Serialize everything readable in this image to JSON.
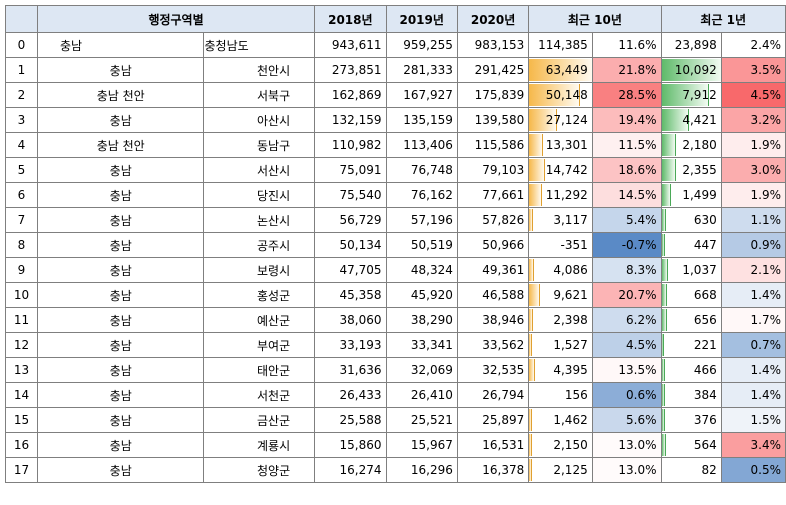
{
  "header": {
    "index": "",
    "region": "행정구역별",
    "y2018": "2018년",
    "y2019": "2019년",
    "y2020": "2020년",
    "recent10": "최근 10년",
    "recent1": "최근 1년"
  },
  "colors": {
    "header_bg": "#dde7f3",
    "orange_bar": "#f6b84a",
    "green_bar": "#5fba6a",
    "red_scale": "#f8696b",
    "blue_scale": "#5a8ac6",
    "border": "#7f7f7f"
  },
  "rows": [
    {
      "idx": "0",
      "prov": "충남",
      "city": "충청남도",
      "y2018": "943,611",
      "y2019": "959,255",
      "y2020": "983,153",
      "d10": "114,385",
      "p10": "11.6%",
      "d1": "23,898",
      "p1": "2.4%",
      "b10": 0,
      "b1": 0,
      "s10": 0,
      "s1": 0
    },
    {
      "idx": "1",
      "prov": "충남",
      "city": "천안시",
      "y2018": "273,851",
      "y2019": "281,333",
      "y2020": "291,425",
      "d10": "63,449",
      "p10": "21.8%",
      "d1": "10,092",
      "p1": "3.5%",
      "b10": 1.0,
      "b1": 1.0,
      "s10": 0.55,
      "s1": 0.7
    },
    {
      "idx": "2",
      "prov": "충남 천안",
      "city": "서북구",
      "y2018": "162,869",
      "y2019": "167,927",
      "y2020": "175,839",
      "d10": "50,148",
      "p10": "28.5%",
      "d1": "7,912",
      "p1": "4.5%",
      "b10": 0.79,
      "b1": 0.78,
      "s10": 0.85,
      "s1": 1.0
    },
    {
      "idx": "3",
      "prov": "충남",
      "city": "아산시",
      "y2018": "132,159",
      "y2019": "135,159",
      "y2020": "139,580",
      "d10": "27,124",
      "p10": "19.4%",
      "d1": "4,421",
      "p1": "3.2%",
      "b10": 0.43,
      "b1": 0.44,
      "s10": 0.45,
      "s1": 0.6
    },
    {
      "idx": "4",
      "prov": "충남 천안",
      "city": "동남구",
      "y2018": "110,982",
      "y2019": "113,406",
      "y2020": "115,586",
      "d10": "13,301",
      "p10": "11.5%",
      "d1": "2,180",
      "p1": "1.9%",
      "b10": 0.21,
      "b1": 0.22,
      "s10": 0.1,
      "s1": 0.12
    },
    {
      "idx": "5",
      "prov": "충남",
      "city": "서산시",
      "y2018": "75,091",
      "y2019": "76,748",
      "y2020": "79,103",
      "d10": "14,742",
      "p10": "18.6%",
      "d1": "2,355",
      "p1": "3.0%",
      "b10": 0.23,
      "b1": 0.23,
      "s10": 0.4,
      "s1": 0.55
    },
    {
      "idx": "6",
      "prov": "충남",
      "city": "당진시",
      "y2018": "75,540",
      "y2019": "76,162",
      "y2020": "77,661",
      "d10": "11,292",
      "p10": "14.5%",
      "d1": "1,499",
      "p1": "1.9%",
      "b10": 0.18,
      "b1": 0.15,
      "s10": 0.22,
      "s1": 0.12
    },
    {
      "idx": "7",
      "prov": "충남",
      "city": "논산시",
      "y2018": "56,729",
      "y2019": "57,196",
      "y2020": "57,826",
      "d10": "3,117",
      "p10": "5.4%",
      "d1": "630",
      "p1": "1.1%",
      "b10": 0.05,
      "b1": 0.06,
      "s10": -0.35,
      "s1": -0.3
    },
    {
      "idx": "8",
      "prov": "충남",
      "city": "공주시",
      "y2018": "50,134",
      "y2019": "50,519",
      "y2020": "50,966",
      "d10": "-351",
      "p10": "-0.7%",
      "d1": "447",
      "p1": "0.9%",
      "b10": 0,
      "b1": 0.04,
      "s10": -1.0,
      "s1": -0.45
    },
    {
      "idx": "9",
      "prov": "충남",
      "city": "보령시",
      "y2018": "47,705",
      "y2019": "48,324",
      "y2020": "49,361",
      "d10": "4,086",
      "p10": "8.3%",
      "d1": "1,037",
      "p1": "2.1%",
      "b10": 0.06,
      "b1": 0.1,
      "s10": -0.25,
      "s1": 0.2
    },
    {
      "idx": "10",
      "prov": "충남",
      "city": "홍성군",
      "y2018": "45,358",
      "y2019": "45,920",
      "y2020": "46,588",
      "d10": "9,621",
      "p10": "20.7%",
      "d1": "668",
      "p1": "1.4%",
      "b10": 0.15,
      "b1": 0.07,
      "s10": 0.5,
      "s1": -0.15
    },
    {
      "idx": "11",
      "prov": "충남",
      "city": "예산군",
      "y2018": "38,060",
      "y2019": "38,290",
      "y2020": "38,946",
      "d10": "2,398",
      "p10": "6.2%",
      "d1": "656",
      "p1": "1.7%",
      "b10": 0.04,
      "b1": 0.07,
      "s10": -0.3,
      "s1": 0.05
    },
    {
      "idx": "12",
      "prov": "충남",
      "city": "부여군",
      "y2018": "33,193",
      "y2019": "33,341",
      "y2020": "33,562",
      "d10": "1,527",
      "p10": "4.5%",
      "d1": "221",
      "p1": "0.7%",
      "b10": 0.02,
      "b1": 0.02,
      "s10": -0.4,
      "s1": -0.55
    },
    {
      "idx": "13",
      "prov": "충남",
      "city": "태안군",
      "y2018": "31,636",
      "y2019": "32,069",
      "y2020": "32,535",
      "d10": "4,395",
      "p10": "13.5%",
      "d1": "466",
      "p1": "1.4%",
      "b10": 0.07,
      "b1": 0.05,
      "s10": 0.05,
      "s1": -0.15
    },
    {
      "idx": "14",
      "prov": "충남",
      "city": "서천군",
      "y2018": "26,433",
      "y2019": "26,410",
      "y2020": "26,794",
      "d10": "156",
      "p10": "0.6%",
      "d1": "384",
      "p1": "1.4%",
      "b10": 0.0,
      "b1": 0.04,
      "s10": -0.7,
      "s1": -0.15
    },
    {
      "idx": "15",
      "prov": "충남",
      "city": "금산군",
      "y2018": "25,588",
      "y2019": "25,521",
      "y2020": "25,897",
      "d10": "1,462",
      "p10": "5.6%",
      "d1": "376",
      "p1": "1.5%",
      "b10": 0.02,
      "b1": 0.04,
      "s10": -0.33,
      "s1": -0.1
    },
    {
      "idx": "16",
      "prov": "충남",
      "city": "계룡시",
      "y2018": "15,860",
      "y2019": "15,967",
      "y2020": "16,531",
      "d10": "2,150",
      "p10": "13.0%",
      "d1": "564",
      "p1": "3.4%",
      "b10": 0.03,
      "b1": 0.06,
      "s10": 0.03,
      "s1": 0.65
    },
    {
      "idx": "17",
      "prov": "충남",
      "city": "청양군",
      "y2018": "16,274",
      "y2019": "16,296",
      "y2020": "16,378",
      "d10": "2,125",
      "p10": "13.0%",
      "d1": "82",
      "p1": "0.5%",
      "b10": 0.03,
      "b1": 0.0,
      "s10": 0.03,
      "s1": -0.75
    }
  ]
}
